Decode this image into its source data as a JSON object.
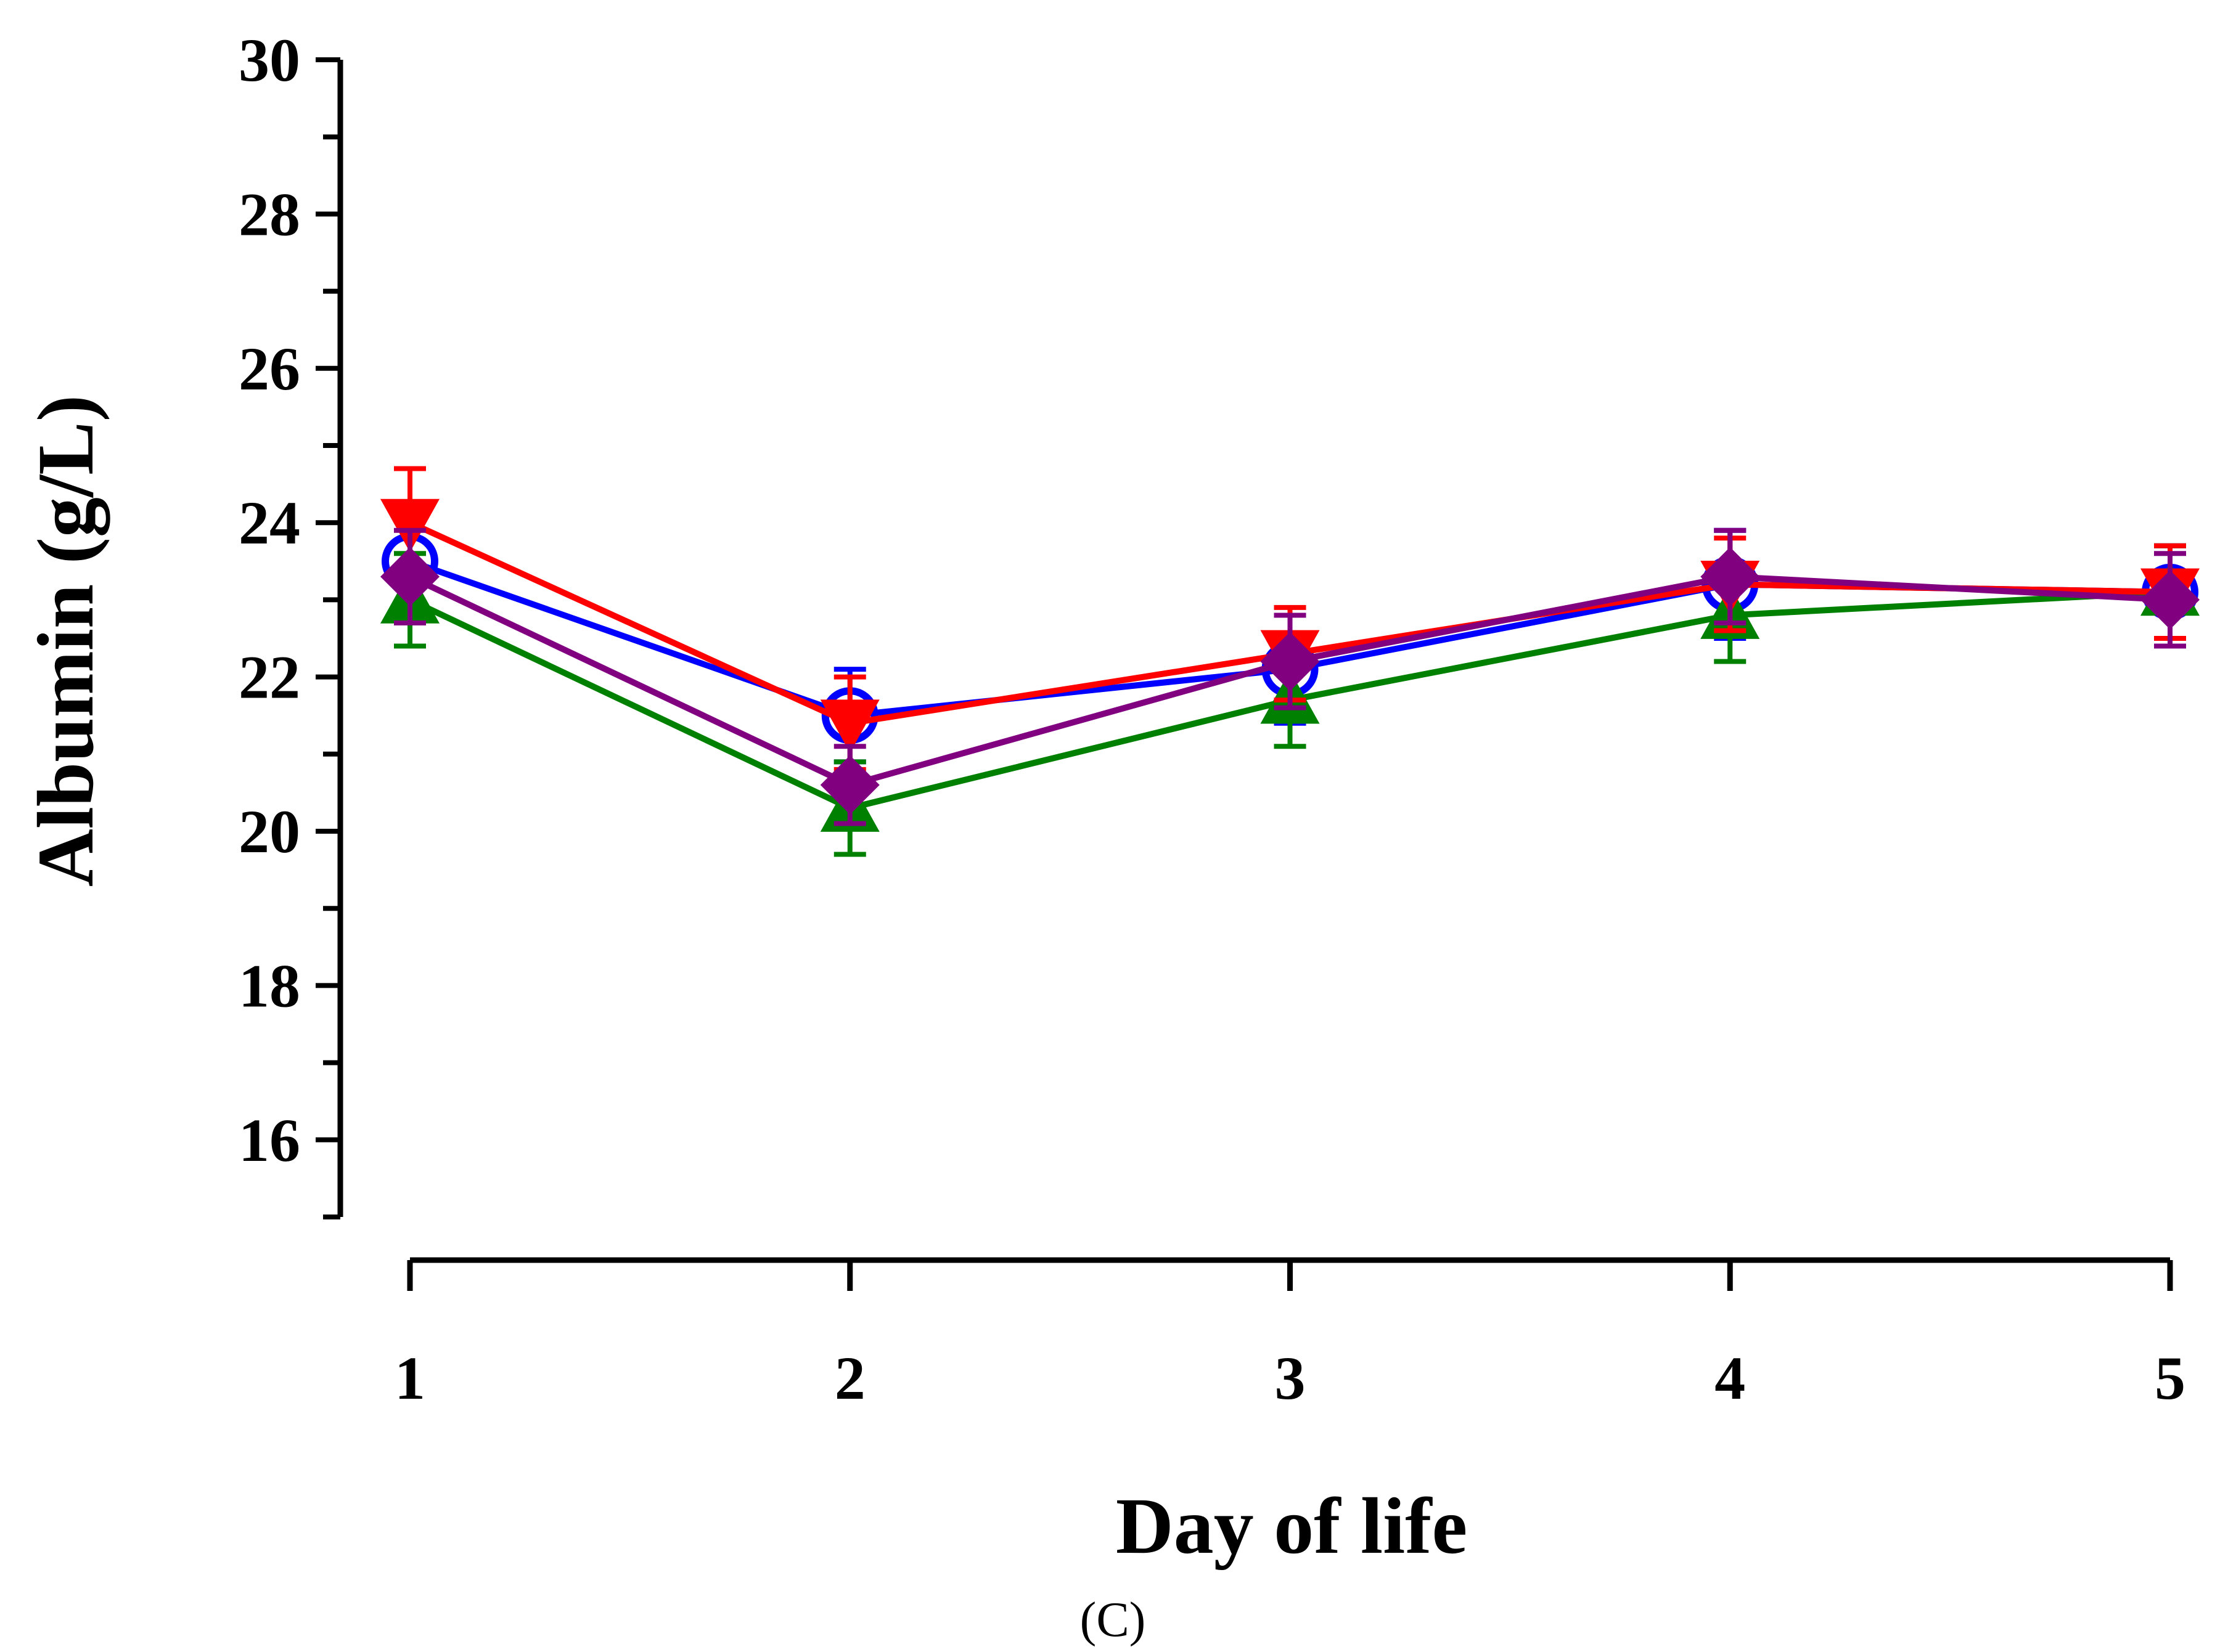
{
  "chart_data": {
    "type": "line",
    "xlabel": "Day of life",
    "ylabel": "Albumin (g/L)",
    "panel_label": "(C)",
    "x": [
      1,
      2,
      3,
      4,
      5
    ],
    "x_tick_labels": [
      "1",
      "2",
      "3",
      "4",
      "5"
    ],
    "ylim": [
      15,
      30
    ],
    "y_ticks": [
      16,
      18,
      20,
      22,
      24,
      26,
      28,
      30
    ],
    "y_tick_labels": [
      "16",
      "18",
      "20",
      "22",
      "24",
      "26",
      "28",
      "30"
    ],
    "y_minor_step": 1,
    "grid": false,
    "legend": "none",
    "series": [
      {
        "color": "#0000ff",
        "marker": "open-circle",
        "values": [
          23.5,
          21.5,
          22.1,
          23.2,
          23.1
        ],
        "errors": [
          0.6,
          0.6,
          0.7,
          0.7,
          0.6
        ]
      },
      {
        "color": "#008000",
        "marker": "triangle-up",
        "values": [
          23.0,
          20.3,
          21.7,
          22.8,
          23.1
        ],
        "errors": [
          0.6,
          0.6,
          0.6,
          0.6,
          0.6
        ]
      },
      {
        "color": "#ff0000",
        "marker": "triangle-down",
        "values": [
          24.0,
          21.4,
          22.3,
          23.2,
          23.1
        ],
        "errors": [
          0.7,
          0.6,
          0.6,
          0.6,
          0.6
        ]
      },
      {
        "color": "#800080",
        "marker": "diamond",
        "values": [
          23.3,
          20.6,
          22.2,
          23.3,
          23.0
        ],
        "errors": [
          0.6,
          0.5,
          0.6,
          0.6,
          0.6
        ]
      }
    ]
  }
}
